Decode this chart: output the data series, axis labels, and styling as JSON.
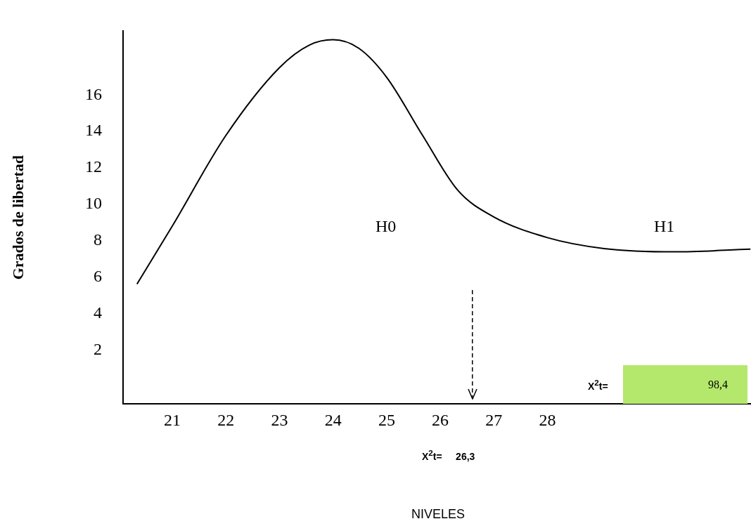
{
  "chart_data": {
    "type": "line",
    "ylabel": "Grados de libertad",
    "xlim": [
      20.08,
      31.8
    ],
    "ylim": [
      -0.95,
      19.5
    ],
    "xticks": [
      21,
      22,
      23,
      24,
      25,
      26,
      27,
      28
    ],
    "yticks": [
      2,
      4,
      6,
      8,
      10,
      12,
      14,
      16
    ],
    "grid": false,
    "legend": false,
    "marker": "none",
    "line_style": "solid",
    "series": [
      {
        "color": "#000000",
        "x": [
          20.34,
          21.0,
          22.0,
          23.0,
          23.56,
          24.0,
          24.48,
          25.0,
          25.67,
          26.33,
          26.98,
          28.0,
          29.06,
          30.37,
          31.79
        ],
        "values": [
          5.62,
          8.81,
          13.78,
          17.5,
          18.74,
          19.03,
          18.56,
          16.97,
          13.78,
          10.76,
          9.34,
          8.17,
          7.57,
          7.39,
          7.54
        ]
      }
    ],
    "ref_lines": [
      {
        "axis": "x",
        "value": 26.6,
        "line_style": "dashed",
        "color": "#000000"
      }
    ],
    "annotations": [
      "H0",
      "H1",
      "X$^{2}$t=",
      "98,4",
      "X$^{2}$t=     26,3",
      "NIVELES"
    ]
  }
}
